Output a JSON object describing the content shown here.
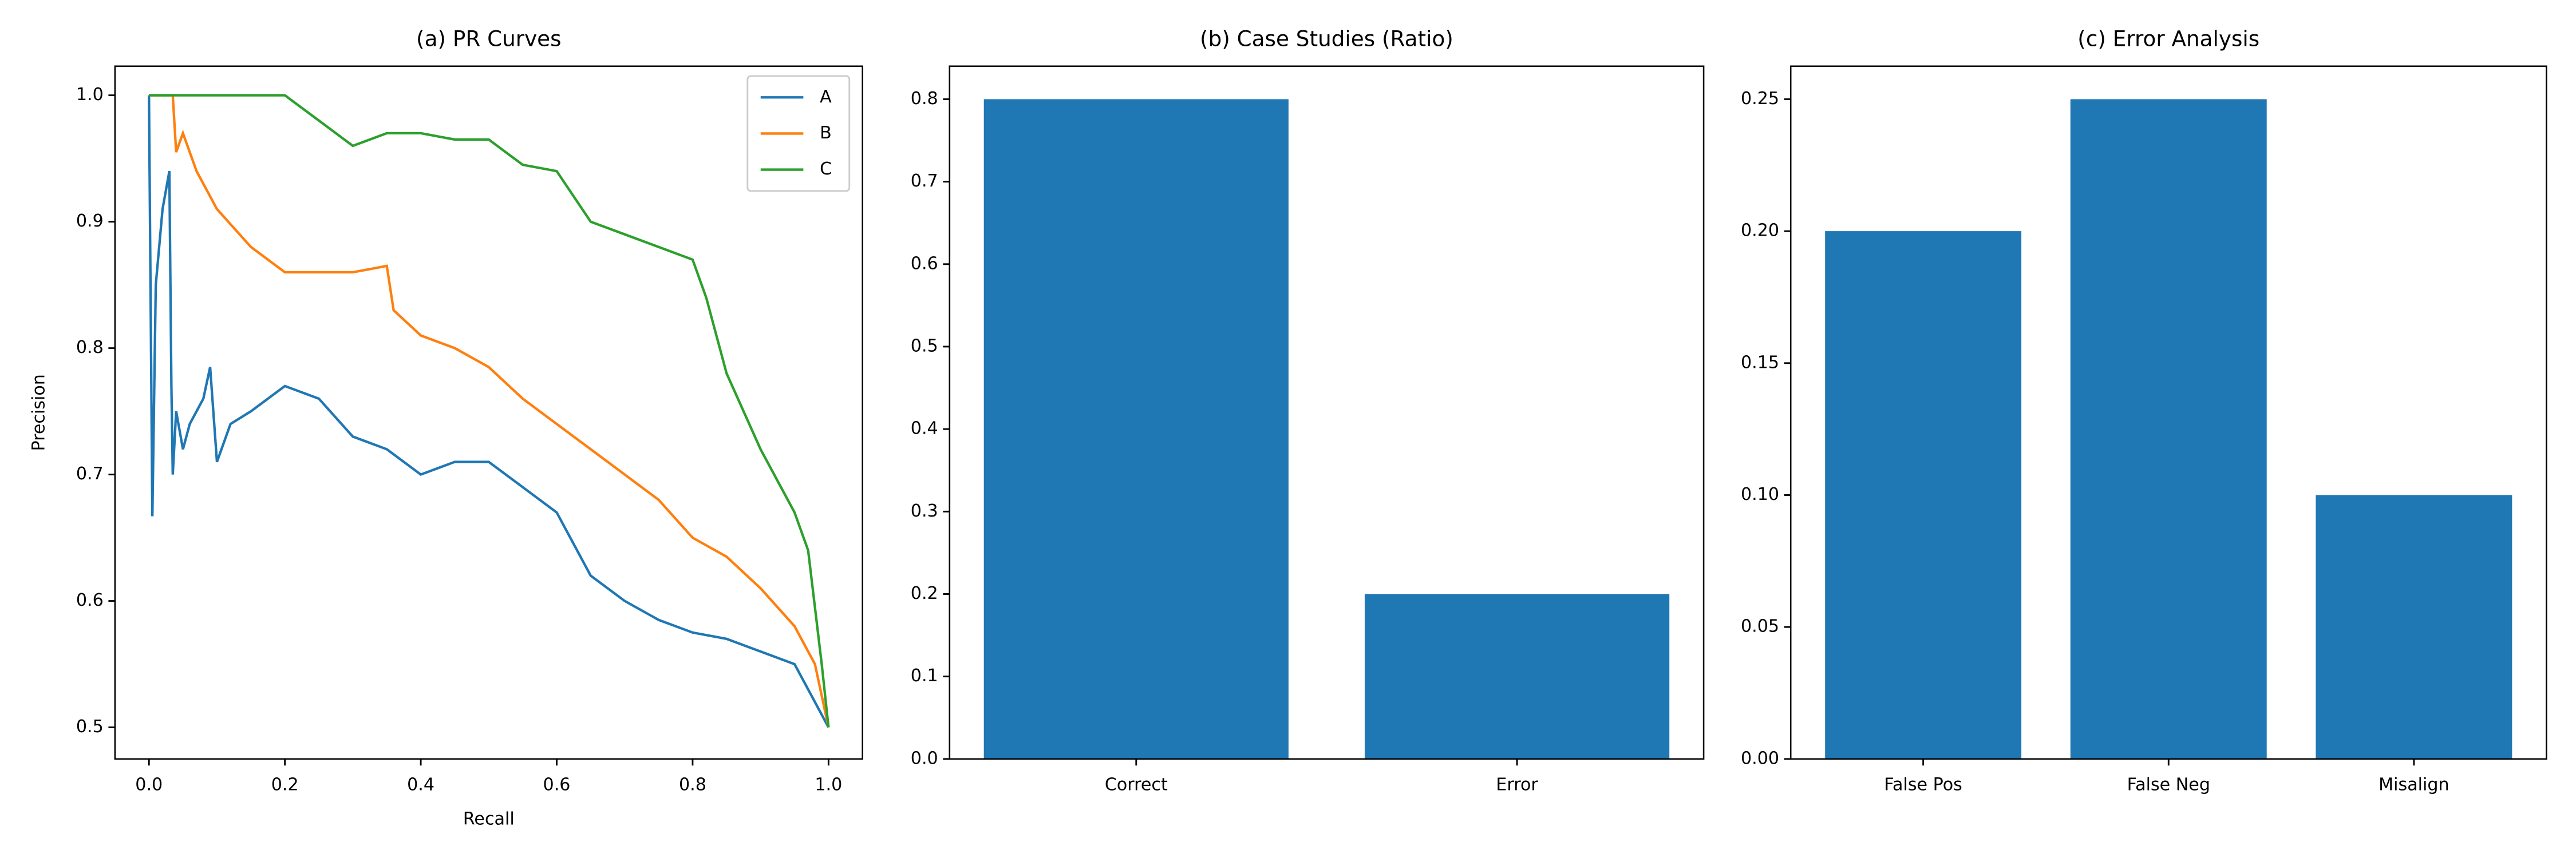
{
  "chart_data": [
    {
      "type": "line",
      "title": "(a) PR Curves",
      "xlabel": "Recall",
      "ylabel": "Precision",
      "series": [
        {
          "name": "A",
          "color": "#1f77b4",
          "x": [
            0,
            0.005,
            0.01,
            0.02,
            0.03,
            0.033,
            0.035,
            0.04,
            0.05,
            0.06,
            0.08,
            0.09,
            0.1,
            0.12,
            0.15,
            0.2,
            0.25,
            0.3,
            0.35,
            0.4,
            0.45,
            0.5,
            0.55,
            0.6,
            0.65,
            0.7,
            0.75,
            0.8,
            0.85,
            0.9,
            0.95,
            1.0
          ],
          "values": [
            1.0,
            0.667,
            0.85,
            0.91,
            0.94,
            0.77,
            0.7,
            0.75,
            0.72,
            0.74,
            0.76,
            0.785,
            0.71,
            0.74,
            0.75,
            0.77,
            0.76,
            0.73,
            0.72,
            0.7,
            0.71,
            0.71,
            0.69,
            0.67,
            0.62,
            0.6,
            0.585,
            0.575,
            0.57,
            0.56,
            0.55,
            0.5
          ]
        },
        {
          "name": "B",
          "color": "#ff7f0e",
          "x": [
            0,
            0.03,
            0.035,
            0.04,
            0.05,
            0.07,
            0.1,
            0.15,
            0.2,
            0.25,
            0.3,
            0.35,
            0.36,
            0.4,
            0.45,
            0.5,
            0.55,
            0.6,
            0.65,
            0.7,
            0.75,
            0.8,
            0.85,
            0.9,
            0.95,
            0.98,
            1.0
          ],
          "values": [
            1.0,
            1.0,
            1.0,
            0.955,
            0.97,
            0.94,
            0.91,
            0.88,
            0.86,
            0.86,
            0.86,
            0.865,
            0.83,
            0.81,
            0.8,
            0.785,
            0.76,
            0.74,
            0.72,
            0.7,
            0.68,
            0.65,
            0.635,
            0.61,
            0.58,
            0.55,
            0.5
          ]
        },
        {
          "name": "C",
          "color": "#2ca02c",
          "x": [
            0,
            0.2,
            0.25,
            0.3,
            0.35,
            0.4,
            0.45,
            0.5,
            0.55,
            0.6,
            0.65,
            0.7,
            0.75,
            0.8,
            0.82,
            0.85,
            0.9,
            0.93,
            0.95,
            0.97,
            0.99,
            1.0
          ],
          "values": [
            1.0,
            1.0,
            0.98,
            0.96,
            0.97,
            0.97,
            0.965,
            0.965,
            0.945,
            0.94,
            0.9,
            0.89,
            0.88,
            0.87,
            0.84,
            0.78,
            0.72,
            0.69,
            0.67,
            0.64,
            0.55,
            0.5
          ]
        }
      ],
      "xlim": [
        -0.05,
        1.05
      ],
      "ylim": [
        0.475,
        1.023
      ],
      "xticks": [
        {
          "value": 0,
          "label": "0.0"
        },
        0.2,
        0.4,
        0.6,
        0.8,
        {
          "value": 1,
          "label": "1.0"
        }
      ],
      "yticks": [
        0.5,
        0.6,
        0.7,
        0.8,
        0.9,
        {
          "value": 1,
          "label": "1.0"
        }
      ],
      "legend": "upper right",
      "grid": false
    },
    {
      "type": "bar",
      "title": "(b) Case Studies (Ratio)",
      "categories": [
        "Correct",
        "Error"
      ],
      "values": [
        0.8,
        0.2
      ],
      "color": "#1f77b4",
      "ylim": [
        0,
        0.84
      ],
      "yticks": [
        {
          "value": 0,
          "label": "0.0"
        },
        0.1,
        0.2,
        0.3,
        0.4,
        0.5,
        0.6,
        0.7,
        0.8
      ],
      "grid": false
    },
    {
      "type": "bar",
      "title": "(c) Error Analysis",
      "categories": [
        "False Pos",
        "False Neg",
        "Misalign"
      ],
      "values": [
        0.2,
        0.25,
        0.1
      ],
      "color": "#1f77b4",
      "ylim": [
        0,
        0.2625
      ],
      "yticks": [
        {
          "value": 0,
          "label": "0.00"
        },
        0.05,
        {
          "value": 0.1,
          "label": "0.10"
        },
        0.15,
        {
          "value": 0.2,
          "label": "0.20"
        },
        0.25
      ],
      "grid": false
    }
  ]
}
